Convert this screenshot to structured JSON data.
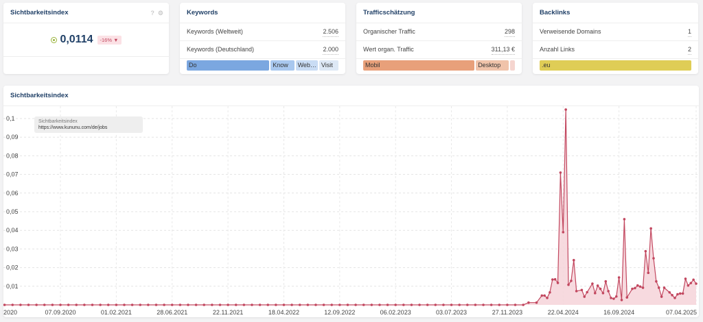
{
  "cards": {
    "visibility": {
      "title": "Sichtbarkeitsindex",
      "value": "0,0114",
      "change": "-16%",
      "change_icon": "triangle-down-icon",
      "help_icon": "?",
      "icons": [
        "help-icon",
        "gear-icon"
      ]
    },
    "keywords": {
      "title": "Keywords",
      "rows": [
        {
          "label": "Keywords (Weltweit)",
          "value": "2.506"
        },
        {
          "label": "Keywords (Deutschland)",
          "value": "2.000"
        }
      ],
      "bar": [
        {
          "label": "Do",
          "share": 56,
          "color": "#7ba7e0"
        },
        {
          "label": "Know",
          "share": 15,
          "color": "#a9c8ef"
        },
        {
          "label": "Web…",
          "share": 14,
          "color": "#c9dcf4"
        },
        {
          "label": "Visit",
          "share": 12,
          "color": "#dde8f5"
        }
      ]
    },
    "traffic": {
      "title": "Trafficschätzung",
      "rows": [
        {
          "label": "Organischer Traffic",
          "value": "298"
        },
        {
          "label": "Wert organ. Traffic",
          "value": "311,13 €"
        }
      ],
      "bar": [
        {
          "label": "Mobil",
          "share": 75,
          "color": "#e8a07a"
        },
        {
          "label": "Desktop",
          "share": 21,
          "color": "#f0c3aa"
        },
        {
          "label": "",
          "share": 2,
          "color": "#f5d5cf"
        }
      ]
    },
    "backlinks": {
      "title": "Backlinks",
      "rows": [
        {
          "label": "Verweisende Domains",
          "value": "1"
        },
        {
          "label": "Anzahl Links",
          "value": "2"
        }
      ],
      "bar": [
        {
          "label": ".eu",
          "share": 100,
          "color": "#dfcd56"
        }
      ]
    }
  },
  "chart_panel": {
    "title": "Sichtbarkeitsindex",
    "tooltip": {
      "series": "Sichtbarkeitsindex",
      "url": "https://www.kununu.com/de/jobs"
    }
  },
  "chart_data": {
    "type": "area",
    "colors": {
      "line": "#c2475f",
      "fill": "#f6d3d9"
    },
    "grid": true,
    "xlim": [
      "2020-04-10",
      "2025-04-12"
    ],
    "ylim": [
      0,
      0.105
    ],
    "yticks": [
      {
        "v": 0.01,
        "label": "0,01"
      },
      {
        "v": 0.02,
        "label": "0,02"
      },
      {
        "v": 0.03,
        "label": "0,03"
      },
      {
        "v": 0.04,
        "label": "0,04"
      },
      {
        "v": 0.05,
        "label": "0,05"
      },
      {
        "v": 0.06,
        "label": "0,06"
      },
      {
        "v": 0.07,
        "label": "0,07"
      },
      {
        "v": 0.08,
        "label": "0,08"
      },
      {
        "v": 0.09,
        "label": "0,09"
      },
      {
        "v": 0.1,
        "label": "0,1"
      }
    ],
    "xticks": [
      {
        "d": "2020-04-13",
        "label": "2020"
      },
      {
        "d": "2020-09-07",
        "label": "07.09.2020"
      },
      {
        "d": "2021-02-01",
        "label": "01.02.2021"
      },
      {
        "d": "2021-06-28",
        "label": "28.06.2021"
      },
      {
        "d": "2021-11-22",
        "label": "22.11.2021"
      },
      {
        "d": "2022-04-18",
        "label": "18.04.2022"
      },
      {
        "d": "2022-09-12",
        "label": "12.09.2022"
      },
      {
        "d": "2023-02-06",
        "label": "06.02.2023"
      },
      {
        "d": "2023-07-03",
        "label": "03.07.2023"
      },
      {
        "d": "2023-11-27",
        "label": "27.11.2023"
      },
      {
        "d": "2024-04-22",
        "label": "22.04.2024"
      },
      {
        "d": "2024-09-16",
        "label": "16.09.2024"
      },
      {
        "d": "2025-04-07",
        "label": "07.04.2025"
      }
    ],
    "series": [
      {
        "name": "Sichtbarkeitsindex",
        "points": [
          [
            "2020-04-13",
            0
          ],
          [
            "2020-05-04",
            0
          ],
          [
            "2020-05-25",
            0
          ],
          [
            "2020-06-15",
            0
          ],
          [
            "2020-07-06",
            0
          ],
          [
            "2020-07-27",
            0
          ],
          [
            "2020-08-17",
            0
          ],
          [
            "2020-09-07",
            0
          ],
          [
            "2020-09-28",
            0
          ],
          [
            "2020-10-19",
            0
          ],
          [
            "2020-11-09",
            0
          ],
          [
            "2020-11-30",
            0
          ],
          [
            "2020-12-21",
            0
          ],
          [
            "2021-01-11",
            0
          ],
          [
            "2021-02-01",
            0
          ],
          [
            "2021-02-22",
            0
          ],
          [
            "2021-03-15",
            0
          ],
          [
            "2021-04-05",
            0
          ],
          [
            "2021-04-26",
            0
          ],
          [
            "2021-05-17",
            0
          ],
          [
            "2021-06-07",
            0
          ],
          [
            "2021-06-28",
            0
          ],
          [
            "2021-07-19",
            0
          ],
          [
            "2021-08-09",
            0
          ],
          [
            "2021-08-30",
            0
          ],
          [
            "2021-09-20",
            0
          ],
          [
            "2021-10-11",
            0
          ],
          [
            "2021-11-01",
            0
          ],
          [
            "2021-11-22",
            0
          ],
          [
            "2021-12-13",
            0
          ],
          [
            "2022-01-03",
            0
          ],
          [
            "2022-01-24",
            0
          ],
          [
            "2022-02-14",
            0
          ],
          [
            "2022-03-07",
            0
          ],
          [
            "2022-03-28",
            0
          ],
          [
            "2022-04-18",
            0
          ],
          [
            "2022-05-09",
            0
          ],
          [
            "2022-05-30",
            0
          ],
          [
            "2022-06-20",
            0
          ],
          [
            "2022-07-11",
            0
          ],
          [
            "2022-08-01",
            0
          ],
          [
            "2022-08-22",
            0
          ],
          [
            "2022-09-12",
            0
          ],
          [
            "2022-10-03",
            0
          ],
          [
            "2022-10-24",
            0
          ],
          [
            "2022-11-14",
            0
          ],
          [
            "2022-12-05",
            0
          ],
          [
            "2022-12-26",
            0
          ],
          [
            "2023-01-16",
            0
          ],
          [
            "2023-02-06",
            0
          ],
          [
            "2023-02-27",
            0
          ],
          [
            "2023-03-20",
            0
          ],
          [
            "2023-04-10",
            0
          ],
          [
            "2023-05-01",
            0
          ],
          [
            "2023-05-22",
            0
          ],
          [
            "2023-06-12",
            0
          ],
          [
            "2023-07-03",
            0
          ],
          [
            "2023-07-24",
            0
          ],
          [
            "2023-08-14",
            0
          ],
          [
            "2023-09-04",
            0
          ],
          [
            "2023-09-25",
            0
          ],
          [
            "2023-10-16",
            0
          ],
          [
            "2023-11-06",
            0
          ],
          [
            "2023-11-27",
            0
          ],
          [
            "2023-12-18",
            0
          ],
          [
            "2024-01-08",
            0
          ],
          [
            "2024-01-22",
            0.0012
          ],
          [
            "2024-02-12",
            0.0012
          ],
          [
            "2024-02-26",
            0.005
          ],
          [
            "2024-03-04",
            0.005
          ],
          [
            "2024-03-11",
            0.0037
          ],
          [
            "2024-03-18",
            0.0067
          ],
          [
            "2024-03-25",
            0.0136
          ],
          [
            "2024-04-01",
            0.0137
          ],
          [
            "2024-04-08",
            0.0118
          ],
          [
            "2024-04-15",
            0.071
          ],
          [
            "2024-04-22",
            0.039
          ],
          [
            "2024-04-29",
            0.1048
          ],
          [
            "2024-05-06",
            0.0108
          ],
          [
            "2024-05-13",
            0.0129
          ],
          [
            "2024-05-20",
            0.024
          ],
          [
            "2024-05-27",
            0.0074
          ],
          [
            "2024-06-10",
            0.008
          ],
          [
            "2024-06-17",
            0.0044
          ],
          [
            "2024-06-24",
            0.0068
          ],
          [
            "2024-07-08",
            0.0114
          ],
          [
            "2024-07-15",
            0.0063
          ],
          [
            "2024-07-22",
            0.0103
          ],
          [
            "2024-07-29",
            0.0086
          ],
          [
            "2024-08-05",
            0.0063
          ],
          [
            "2024-08-12",
            0.0126
          ],
          [
            "2024-08-19",
            0.0074
          ],
          [
            "2024-08-26",
            0.0037
          ],
          [
            "2024-09-02",
            0.0033
          ],
          [
            "2024-09-09",
            0.0045
          ],
          [
            "2024-09-16",
            0.0147
          ],
          [
            "2024-09-23",
            0.0026
          ],
          [
            "2024-09-30",
            0.046
          ],
          [
            "2024-10-07",
            0.004
          ],
          [
            "2024-10-21",
            0.0086
          ],
          [
            "2024-10-28",
            0.009
          ],
          [
            "2024-11-04",
            0.0104
          ],
          [
            "2024-11-11",
            0.0098
          ],
          [
            "2024-11-18",
            0.0092
          ],
          [
            "2024-11-25",
            0.0288
          ],
          [
            "2024-12-02",
            0.0172
          ],
          [
            "2024-12-09",
            0.041
          ],
          [
            "2024-12-16",
            0.025
          ],
          [
            "2024-12-23",
            0.0126
          ],
          [
            "2024-12-30",
            0.0092
          ],
          [
            "2025-01-06",
            0.0044
          ],
          [
            "2025-01-13",
            0.0092
          ],
          [
            "2025-01-27",
            0.0067
          ],
          [
            "2025-02-03",
            0.0052
          ],
          [
            "2025-02-10",
            0.0037
          ],
          [
            "2025-02-17",
            0.0057
          ],
          [
            "2025-02-24",
            0.0061
          ],
          [
            "2025-03-03",
            0.0061
          ],
          [
            "2025-03-10",
            0.014
          ],
          [
            "2025-03-17",
            0.0104
          ],
          [
            "2025-03-24",
            0.0117
          ],
          [
            "2025-03-31",
            0.0135
          ],
          [
            "2025-04-07",
            0.0114
          ]
        ]
      }
    ]
  }
}
